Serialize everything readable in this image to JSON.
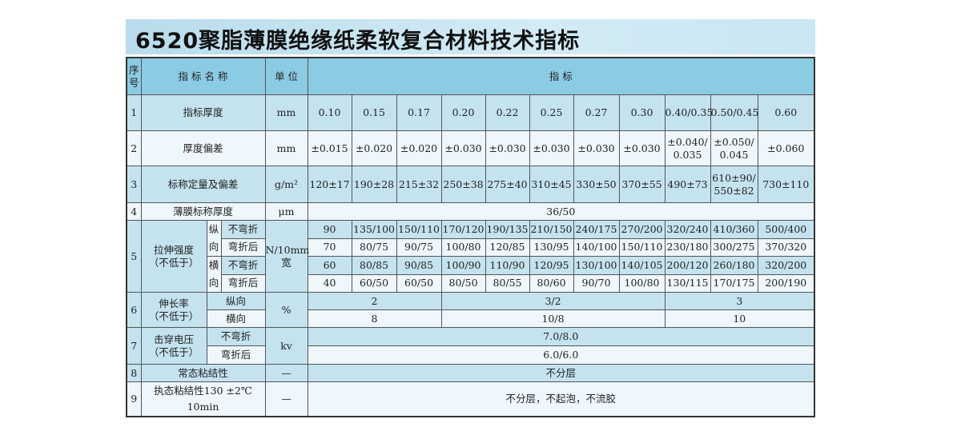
{
  "title": "6520聚脂薄膜绝缘纸柔软复合材料技术指标",
  "header": {
    "seq": "序\n号",
    "name": "指 标 名 称",
    "unit": "单 位",
    "values": "指                    标"
  },
  "rows": [
    {
      "no": "1",
      "name": "指标厚度",
      "unit": "mm",
      "values": [
        "0.10",
        "0.15",
        "0.17",
        "0.20",
        "0.22",
        "0.25",
        "0.27",
        "0.30",
        "0.40/0.35",
        "0.50/0.45",
        "0.60"
      ]
    },
    {
      "no": "2",
      "name": "厚度偏差",
      "unit": "mm",
      "values": [
        "±0.015",
        "±0.020",
        "±0.020",
        "±0.030",
        "±0.030",
        "±0.030",
        "±0.030",
        "±0.030",
        "±0.040/\n0.035",
        "±0.050/\n0.045",
        "±0.060"
      ]
    },
    {
      "no": "3",
      "name": "标称定量及偏差",
      "unit": "g/m²",
      "values": [
        "120±17",
        "190±28",
        "215±32",
        "250±38",
        "275±40",
        "310±45",
        "330±50",
        "370±55",
        "490±73",
        "610±90/\n550±82",
        "730±110"
      ]
    },
    {
      "no": "4",
      "name": "薄膜标称厚度",
      "unit": "μm",
      "value": "36/50"
    },
    {
      "no": "5",
      "name": "拉伸强度\n（不低于）",
      "unit": "N/10mm\n宽",
      "groups": [
        {
          "dir": "纵\n向",
          "subs": [
            {
              "label": "不弯折",
              "values": [
                "90",
                "135/100",
                "150/110",
                "170/120",
                "190/135",
                "210/150",
                "240/175",
                "270/200",
                "320/240",
                "410/360",
                "500/400"
              ]
            },
            {
              "label": "弯折后",
              "values": [
                "70",
                "80/75",
                "90/75",
                "100/80",
                "120/85",
                "130/95",
                "140/100",
                "150/110",
                "230/180",
                "300/275",
                "370/320"
              ]
            }
          ]
        },
        {
          "dir": "横\n向",
          "subs": [
            {
              "label": "不弯折",
              "values": [
                "60",
                "80/85",
                "90/85",
                "100/90",
                "110/90",
                "120/95",
                "130/100",
                "140/105",
                "200/120",
                "260/180",
                "320/200"
              ]
            },
            {
              "label": "弯折后",
              "values": [
                "40",
                "60/50",
                "60/50",
                "80/50",
                "80/55",
                "80/60",
                "90/70",
                "100/80",
                "130/115",
                "170/175",
                "200/190"
              ]
            }
          ]
        }
      ]
    },
    {
      "no": "6",
      "name": "伸长率\n（不低于）",
      "unit": "%",
      "subs": [
        {
          "label": "纵向",
          "values": [
            "2",
            "3/2",
            "3"
          ]
        },
        {
          "label": "横向",
          "values": [
            "8",
            "10/8",
            "10"
          ]
        }
      ]
    },
    {
      "no": "7",
      "name": "击穿电压\n（不低于）",
      "unit": "kv",
      "subs": [
        {
          "label": "不弯折",
          "value": "7.0/8.0"
        },
        {
          "label": "弯折后",
          "value": "6.0/6.0"
        }
      ]
    },
    {
      "no": "8",
      "name": "常态粘结性",
      "unit": "—",
      "value": "不分层"
    },
    {
      "no": "9",
      "name": "执态粘结性130 ±2℃\n10min",
      "unit": "—",
      "value": "不分层，不起泡，不流胶"
    }
  ],
  "colors": {
    "header": "#8ccbe4",
    "band": "#c4e3ef",
    "row": "#eef7fb"
  }
}
